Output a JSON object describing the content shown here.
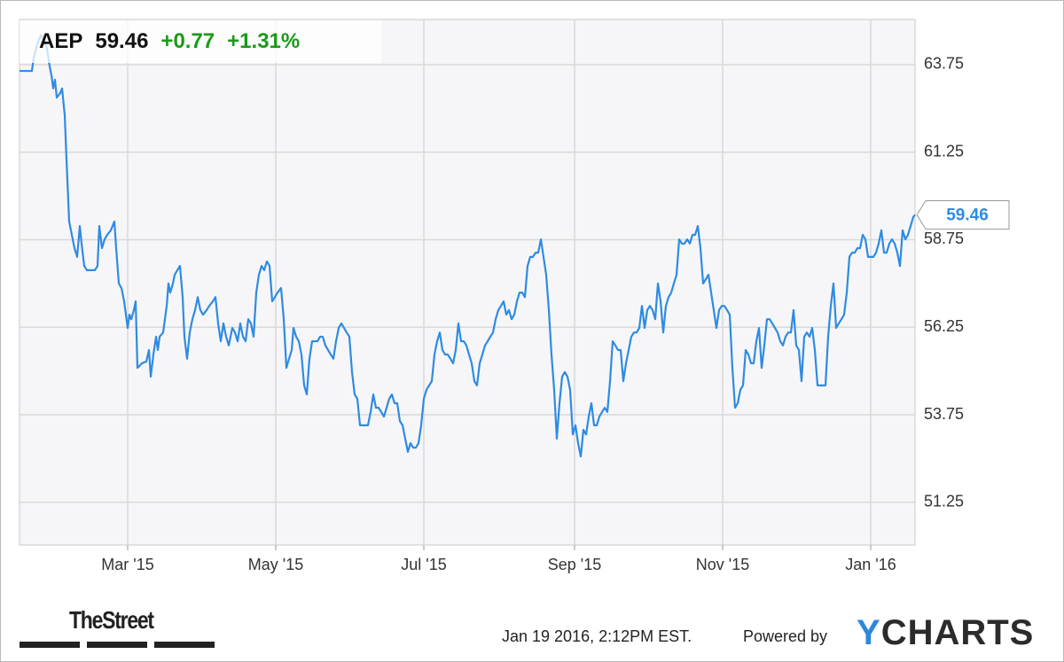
{
  "chart_data": {
    "type": "line",
    "header": {
      "symbol": "AEP",
      "price": "59.46",
      "change": "+0.77",
      "change_percent": "+1.31%"
    },
    "color": "#2f8be2",
    "grid": true,
    "xlim": [
      2015.04,
      2016.05
    ],
    "ylim": [
      50.03,
      65.04
    ],
    "yticks": [
      51.25,
      53.75,
      56.25,
      58.75,
      61.25,
      63.75
    ],
    "xticks": [
      {
        "value": 2015.162,
        "label": "Mar '15"
      },
      {
        "value": 2015.329,
        "label": "May '15"
      },
      {
        "value": 2015.496,
        "label": "Jul '15"
      },
      {
        "value": 2015.666,
        "label": "Sep '15"
      },
      {
        "value": 2015.833,
        "label": "Nov '15"
      },
      {
        "value": 2016,
        "label": "Jan '16"
      }
    ],
    "x": [
      2015.04,
      2015.054,
      2015.056,
      2015.06,
      2015.064,
      2015.068,
      2015.071,
      2015.074,
      2015.076,
      2015.078,
      2015.08,
      2015.082,
      2015.086,
      2015.088,
      2015.091,
      2015.093,
      2015.096,
      2015.099,
      2015.102,
      2015.105,
      2015.108,
      2015.11,
      2015.113,
      2015.116,
      2015.121,
      2015.125,
      2015.128,
      2015.13,
      2015.133,
      2015.136,
      2015.139,
      2015.143,
      2015.147,
      2015.149,
      2015.152,
      2015.155,
      2015.158,
      2015.162,
      2015.164,
      2015.166,
      2015.169,
      2015.171,
      2015.173,
      2015.178,
      2015.183,
      2015.186,
      2015.188,
      2015.191,
      2015.194,
      2015.196,
      2015.198,
      2015.202,
      2015.206,
      2015.208,
      2015.21,
      2015.213,
      2015.215,
      2015.218,
      2015.221,
      2015.224,
      2015.226,
      2015.229,
      2015.232,
      2015.235,
      2015.238,
      2015.241,
      2015.244,
      2015.247,
      2015.251,
      2015.254,
      2015.258,
      2015.261,
      2015.264,
      2015.267,
      2015.27,
      2015.273,
      2015.276,
      2015.28,
      2015.283,
      2015.286,
      2015.289,
      2015.292,
      2015.295,
      2015.298,
      2015.301,
      2015.304,
      2015.307,
      2015.31,
      2015.313,
      2015.316,
      2015.319,
      2015.322,
      2015.325,
      2015.328,
      2015.331,
      2015.335,
      2015.338,
      2015.341,
      2015.344,
      2015.347,
      2015.349,
      2015.352,
      2015.355,
      2015.358,
      2015.361,
      2015.364,
      2015.367,
      2015.37,
      2015.373,
      2015.376,
      2015.379,
      2015.382,
      2015.385,
      2015.388,
      2015.391,
      2015.394,
      2015.397,
      2015.4,
      2015.403,
      2015.406,
      2015.409,
      2015.412,
      2015.415,
      2015.418,
      2015.421,
      2015.424,
      2015.427,
      2015.43,
      2015.433,
      2015.436,
      2015.439,
      2015.442,
      2015.445,
      2015.448,
      2015.451,
      2015.454,
      2015.457,
      2015.46,
      2015.463,
      2015.466,
      2015.469,
      2015.472,
      2015.475,
      2015.478,
      2015.481,
      2015.484,
      2015.487,
      2015.49,
      2015.493,
      2015.496,
      2015.499,
      2015.502,
      2015.505,
      2015.508,
      2015.511,
      2015.514,
      2015.517,
      2015.52,
      2015.523,
      2015.526,
      2015.529,
      2015.532,
      2015.535,
      2015.538,
      2015.541,
      2015.544,
      2015.547,
      2015.55,
      2015.553,
      2015.556,
      2015.559,
      2015.562,
      2015.565,
      2015.568,
      2015.571,
      2015.574,
      2015.577,
      2015.58,
      2015.583,
      2015.586,
      2015.589,
      2015.592,
      2015.595,
      2015.598,
      2015.601,
      2015.604,
      2015.607,
      2015.61,
      2015.613,
      2015.616,
      2015.619,
      2015.622,
      2015.625,
      2015.628,
      2015.631,
      2015.634,
      2015.637,
      2015.64,
      2015.643,
      2015.646,
      2015.649,
      2015.652,
      2015.655,
      2015.658,
      2015.661,
      2015.664,
      2015.667,
      2015.67,
      2015.673,
      2015.676,
      2015.679,
      2015.682,
      2015.685,
      2015.688,
      2015.691,
      2015.694,
      2015.697,
      2015.7,
      2015.703,
      2015.706,
      2015.709,
      2015.712,
      2015.715,
      2015.718,
      2015.721,
      2015.724,
      2015.727,
      2015.73,
      2015.733,
      2015.736,
      2015.739,
      2015.742,
      2015.745,
      2015.748,
      2015.751,
      2015.754,
      2015.757,
      2015.76,
      2015.763,
      2015.766,
      2015.769,
      2015.772,
      2015.775,
      2015.778,
      2015.781,
      2015.784,
      2015.787,
      2015.79,
      2015.793,
      2015.796,
      2015.799,
      2015.802,
      2015.805,
      2015.808,
      2015.811,
      2015.814,
      2015.817,
      2015.82,
      2015.823,
      2015.826,
      2015.829,
      2015.832,
      2015.835,
      2015.838,
      2015.841,
      2015.844,
      2015.847,
      2015.85,
      2015.853,
      2015.856,
      2015.859,
      2015.862,
      2015.865,
      2015.868,
      2015.871,
      2015.874,
      2015.877,
      2015.88,
      2015.883,
      2015.886,
      2015.889,
      2015.892,
      2015.895,
      2015.898,
      2015.901,
      2015.904,
      2015.907,
      2015.91,
      2015.913,
      2015.916,
      2015.919,
      2015.922,
      2015.925,
      2015.928,
      2015.931,
      2015.934,
      2015.937,
      2015.94,
      2015.943,
      2015.946,
      2015.949,
      2015.952,
      2015.955,
      2015.958,
      2015.961,
      2015.964,
      2015.967,
      2015.97,
      2015.973,
      2015.976,
      2015.979,
      2015.982,
      2015.985,
      2015.988,
      2015.991,
      2015.994,
      2015.997,
      2016.0,
      2016.003,
      2016.006,
      2016.009,
      2016.012,
      2016.015,
      2016.018,
      2016.021,
      2016.024,
      2016.027,
      2016.03,
      2016.033,
      2016.036,
      2016.039,
      2016.042,
      2016.045,
      2016.048,
      2016.05
    ],
    "values": [
      63.57,
      63.57,
      63.95,
      64.33,
      64.59,
      64.46,
      64.21,
      63.7,
      63.45,
      63.07,
      63.32,
      62.81,
      62.94,
      63.07,
      62.31,
      61.04,
      59.27,
      58.89,
      58.51,
      58.26,
      59.14,
      58.64,
      58.0,
      57.88,
      57.88,
      57.88,
      58.0,
      59.14,
      58.51,
      58.76,
      58.89,
      59.02,
      59.27,
      58.51,
      57.5,
      57.37,
      56.99,
      56.23,
      56.61,
      56.48,
      56.74,
      56.99,
      55.09,
      55.22,
      55.27,
      55.6,
      54.84,
      55.47,
      55.98,
      55.6,
      55.98,
      56.1,
      56.86,
      57.5,
      57.24,
      57.5,
      57.75,
      57.88,
      58.0,
      57.11,
      55.98,
      55.35,
      56.1,
      56.48,
      56.74,
      57.11,
      56.74,
      56.61,
      56.74,
      56.86,
      56.99,
      57.11,
      56.36,
      55.85,
      56.36,
      55.98,
      55.73,
      56.23,
      56.1,
      55.85,
      56.36,
      55.98,
      55.85,
      56.48,
      56.36,
      55.98,
      57.24,
      57.75,
      58.0,
      57.88,
      58.13,
      58.0,
      56.99,
      57.11,
      57.24,
      57.37,
      56.48,
      55.09,
      55.35,
      55.6,
      56.23,
      55.98,
      55.85,
      55.47,
      54.59,
      54.33,
      55.35,
      55.85,
      55.85,
      55.85,
      55.98,
      55.98,
      55.73,
      55.6,
      55.47,
      55.35,
      55.85,
      56.23,
      56.36,
      56.23,
      56.1,
      55.98,
      54.97,
      54.33,
      54.21,
      53.45,
      53.45,
      53.45,
      53.45,
      53.83,
      54.33,
      53.95,
      53.95,
      53.83,
      53.7,
      53.95,
      54.21,
      54.33,
      54.08,
      54.08,
      53.57,
      53.45,
      53.07,
      52.69,
      52.94,
      52.81,
      52.81,
      52.94,
      53.45,
      54.21,
      54.46,
      54.59,
      54.71,
      55.47,
      55.85,
      56.1,
      55.6,
      55.47,
      55.47,
      55.35,
      55.22,
      55.6,
      56.36,
      55.85,
      55.85,
      55.73,
      55.47,
      55.22,
      54.71,
      54.59,
      55.22,
      55.47,
      55.73,
      55.85,
      55.98,
      56.1,
      56.48,
      56.74,
      56.86,
      56.99,
      56.61,
      56.74,
      56.48,
      56.61,
      56.99,
      57.24,
      57.24,
      57.11,
      58.0,
      58.26,
      58.26,
      58.38,
      58.38,
      58.76,
      58.26,
      57.75,
      56.74,
      55.47,
      54.46,
      53.07,
      54.08,
      54.84,
      54.97,
      54.84,
      54.46,
      53.19,
      53.45,
      52.94,
      52.56,
      53.32,
      53.19,
      53.7,
      54.08,
      53.45,
      53.45,
      53.7,
      53.83,
      53.95,
      53.83,
      54.71,
      55.85,
      55.73,
      55.6,
      55.6,
      54.71,
      55.22,
      55.6,
      55.98,
      56.1,
      56.1,
      56.23,
      56.86,
      56.23,
      56.74,
      56.86,
      56.74,
      56.48,
      57.5,
      56.99,
      56.1,
      56.86,
      57.11,
      57.24,
      57.5,
      57.75,
      58.76,
      58.64,
      58.64,
      58.76,
      58.64,
      58.89,
      58.89,
      59.14,
      58.51,
      57.5,
      57.62,
      57.75,
      57.24,
      56.74,
      56.23,
      56.74,
      56.86,
      56.86,
      56.74,
      56.61,
      55.09,
      53.95,
      54.08,
      54.46,
      54.59,
      55.6,
      55.47,
      55.22,
      55.22,
      55.85,
      56.23,
      55.09,
      55.73,
      56.48,
      56.48,
      56.36,
      56.23,
      56.1,
      55.85,
      55.73,
      55.98,
      56.1,
      56.1,
      56.74,
      55.73,
      55.6,
      54.71,
      55.98,
      56.1,
      55.98,
      56.23,
      55.6,
      54.59,
      54.59,
      54.59,
      54.59,
      55.98,
      56.86,
      57.5,
      56.23,
      56.36,
      56.48,
      56.61,
      57.24,
      58.26,
      58.38,
      58.38,
      58.51,
      58.51,
      58.89,
      58.76,
      58.26,
      58.26,
      58.26,
      58.38,
      58.64,
      59.02,
      58.38,
      58.38,
      58.64,
      58.76,
      58.64,
      58.38,
      58.0,
      59.02,
      58.76,
      58.89,
      59.14,
      59.4,
      59.46
    ]
  },
  "footer": {
    "source_logo": "TheStreet",
    "timestamp": "Jan 19 2016, 2:12PM EST.",
    "powered_by": "Powered by",
    "brand_y": "Y",
    "brand_rest": "CHARTS"
  }
}
